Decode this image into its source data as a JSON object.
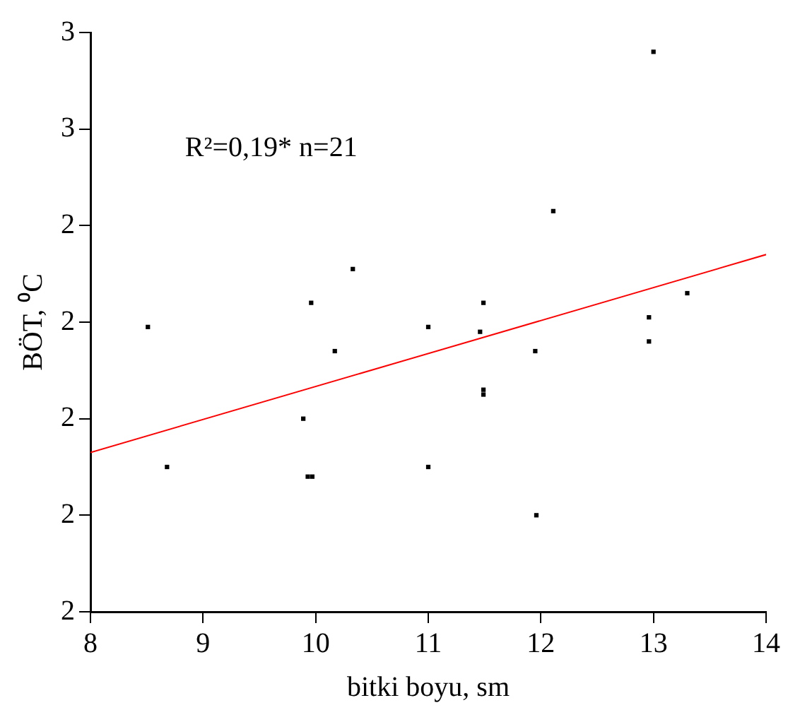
{
  "chart_data": {
    "type": "scatter",
    "xlabel": "bitki boyu, sm",
    "ylabel": "BÖT, ⁰C",
    "annotations": [
      "R²=0,19* n=21"
    ],
    "xlim": [
      8,
      14
    ],
    "xticks": [
      8,
      9,
      10,
      11,
      12,
      13,
      14
    ],
    "ylim": [
      1.6,
      2.8
    ],
    "yticks": [
      {
        "value": 1.6,
        "label": "2"
      },
      {
        "value": 1.8,
        "label": "2"
      },
      {
        "value": 2.0,
        "label": "2"
      },
      {
        "value": 2.2,
        "label": "2"
      },
      {
        "value": 2.4,
        "label": "2"
      },
      {
        "value": 2.6,
        "label": "3"
      },
      {
        "value": 2.8,
        "label": "3"
      }
    ],
    "grid": false,
    "legend": false,
    "series": [
      {
        "marker": "square",
        "color": "#000000",
        "x": [
          8.51,
          8.68,
          9.89,
          9.93,
          9.97,
          9.96,
          10.17,
          10.33,
          11.0,
          11.0,
          11.46,
          11.49,
          11.49,
          11.49,
          11.95,
          11.96,
          12.11,
          12.96,
          12.96,
          13.0,
          13.3
        ],
        "values": [
          2.19,
          1.9,
          2.0,
          1.88,
          1.88,
          2.24,
          2.14,
          2.31,
          2.19,
          1.9,
          2.18,
          2.24,
          2.06,
          2.05,
          2.14,
          1.8,
          2.43,
          2.21,
          2.16,
          2.76,
          2.26
        ]
      },
      {
        "type": "line",
        "color": "#ff0000",
        "x": [
          8,
          14
        ],
        "values": [
          1.93,
          2.34
        ]
      }
    ]
  }
}
